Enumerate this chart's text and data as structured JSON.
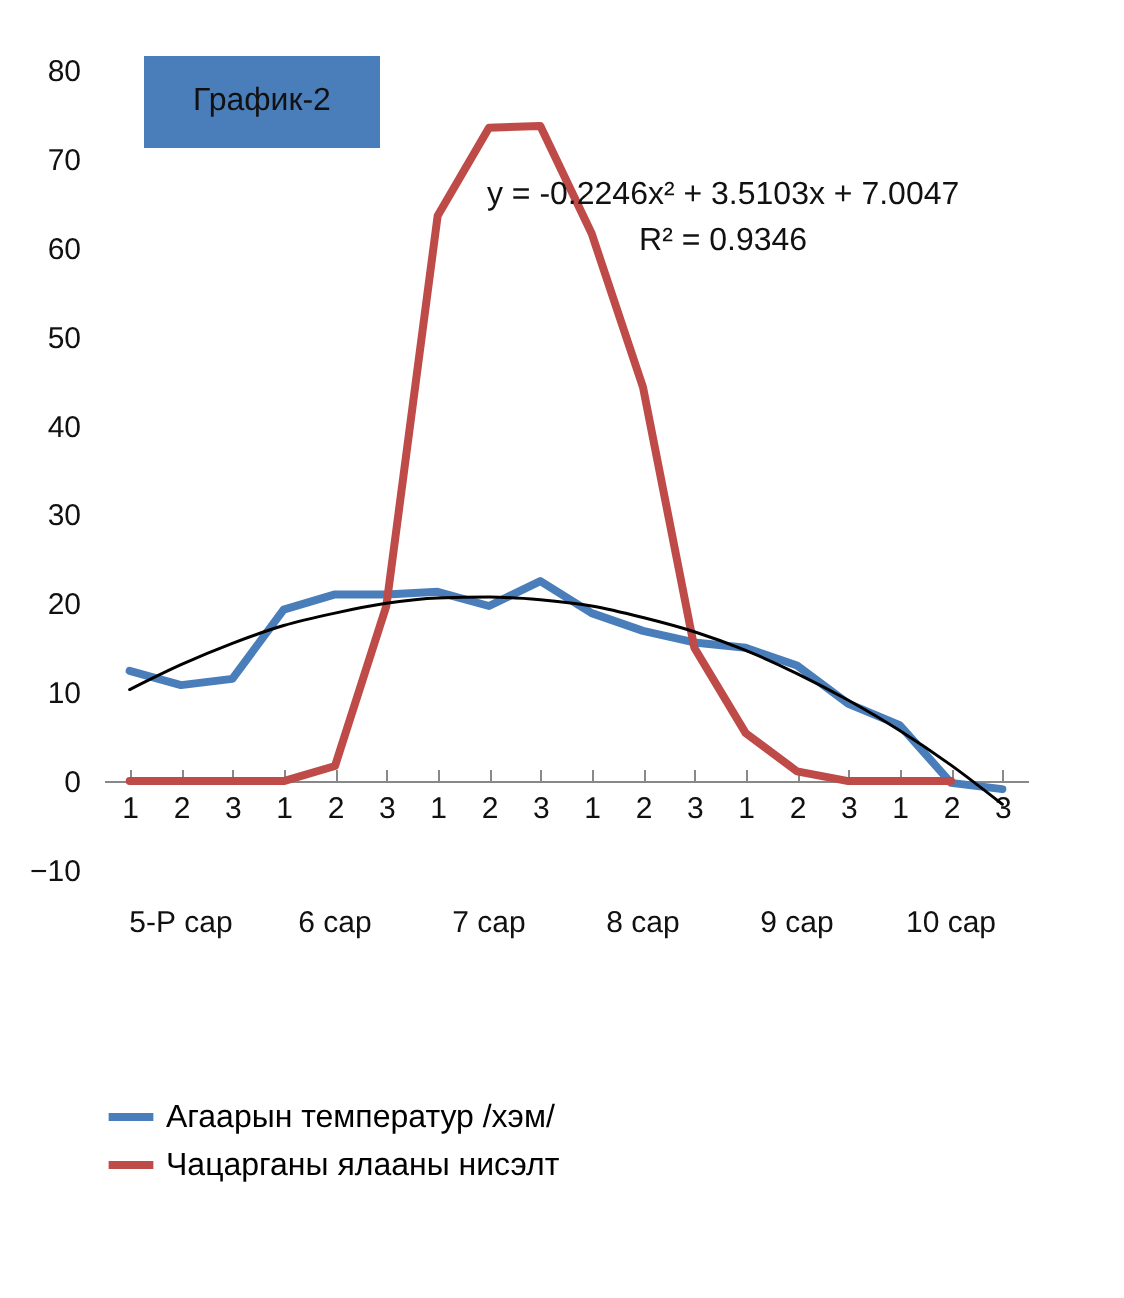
{
  "chart_data": {
    "type": "line",
    "title": "График-2",
    "categories": [
      "1",
      "2",
      "3",
      "1",
      "2",
      "3",
      "1",
      "2",
      "3",
      "1",
      "2",
      "3",
      "1",
      "2",
      "3",
      "1",
      "2",
      "3"
    ],
    "series": [
      {
        "name": "Агаарын температур /хэм/",
        "color": "#4a7ebb",
        "values": [
          12.4,
          10.8,
          11.5,
          19.3,
          21.0,
          21.0,
          21.3,
          19.7,
          22.5,
          18.9,
          16.9,
          15.6,
          15.0,
          13.0,
          8.7,
          6.3,
          -0.2,
          -0.9
        ]
      },
      {
        "name": "Чацарганы ялааны нисэлт",
        "color": "#be4b48",
        "values": [
          0,
          0,
          0,
          0,
          1.7,
          19.7,
          63.6,
          73.5,
          73.7,
          61.6,
          44.3,
          15.0,
          5.4,
          1.1,
          0,
          0,
          0,
          null
        ]
      },
      {
        "type": "line",
        "color": "#000000",
        "values": [
          10.3,
          13.1,
          15.5,
          17.5,
          18.9,
          20.0,
          20.6,
          20.7,
          20.4,
          19.7,
          18.4,
          16.8,
          14.7,
          12.1,
          9.1,
          5.7,
          1.8,
          -2.6
        ]
      }
    ],
    "annotations": [
      "y = -0.2246x² + 3.5103x + 7.0047",
      "R² = 0.9346",
      "5-Р сар",
      "6 сар",
      "7 сар",
      "8 сар",
      "9 сар",
      "10 сар"
    ],
    "ylim": [
      -10,
      80
    ],
    "yticks": [
      -10,
      0,
      10,
      20,
      30,
      40,
      50,
      60,
      70,
      80
    ],
    "grid": false,
    "legend": "bottom",
    "line_style": "solid",
    "marker": "none"
  }
}
